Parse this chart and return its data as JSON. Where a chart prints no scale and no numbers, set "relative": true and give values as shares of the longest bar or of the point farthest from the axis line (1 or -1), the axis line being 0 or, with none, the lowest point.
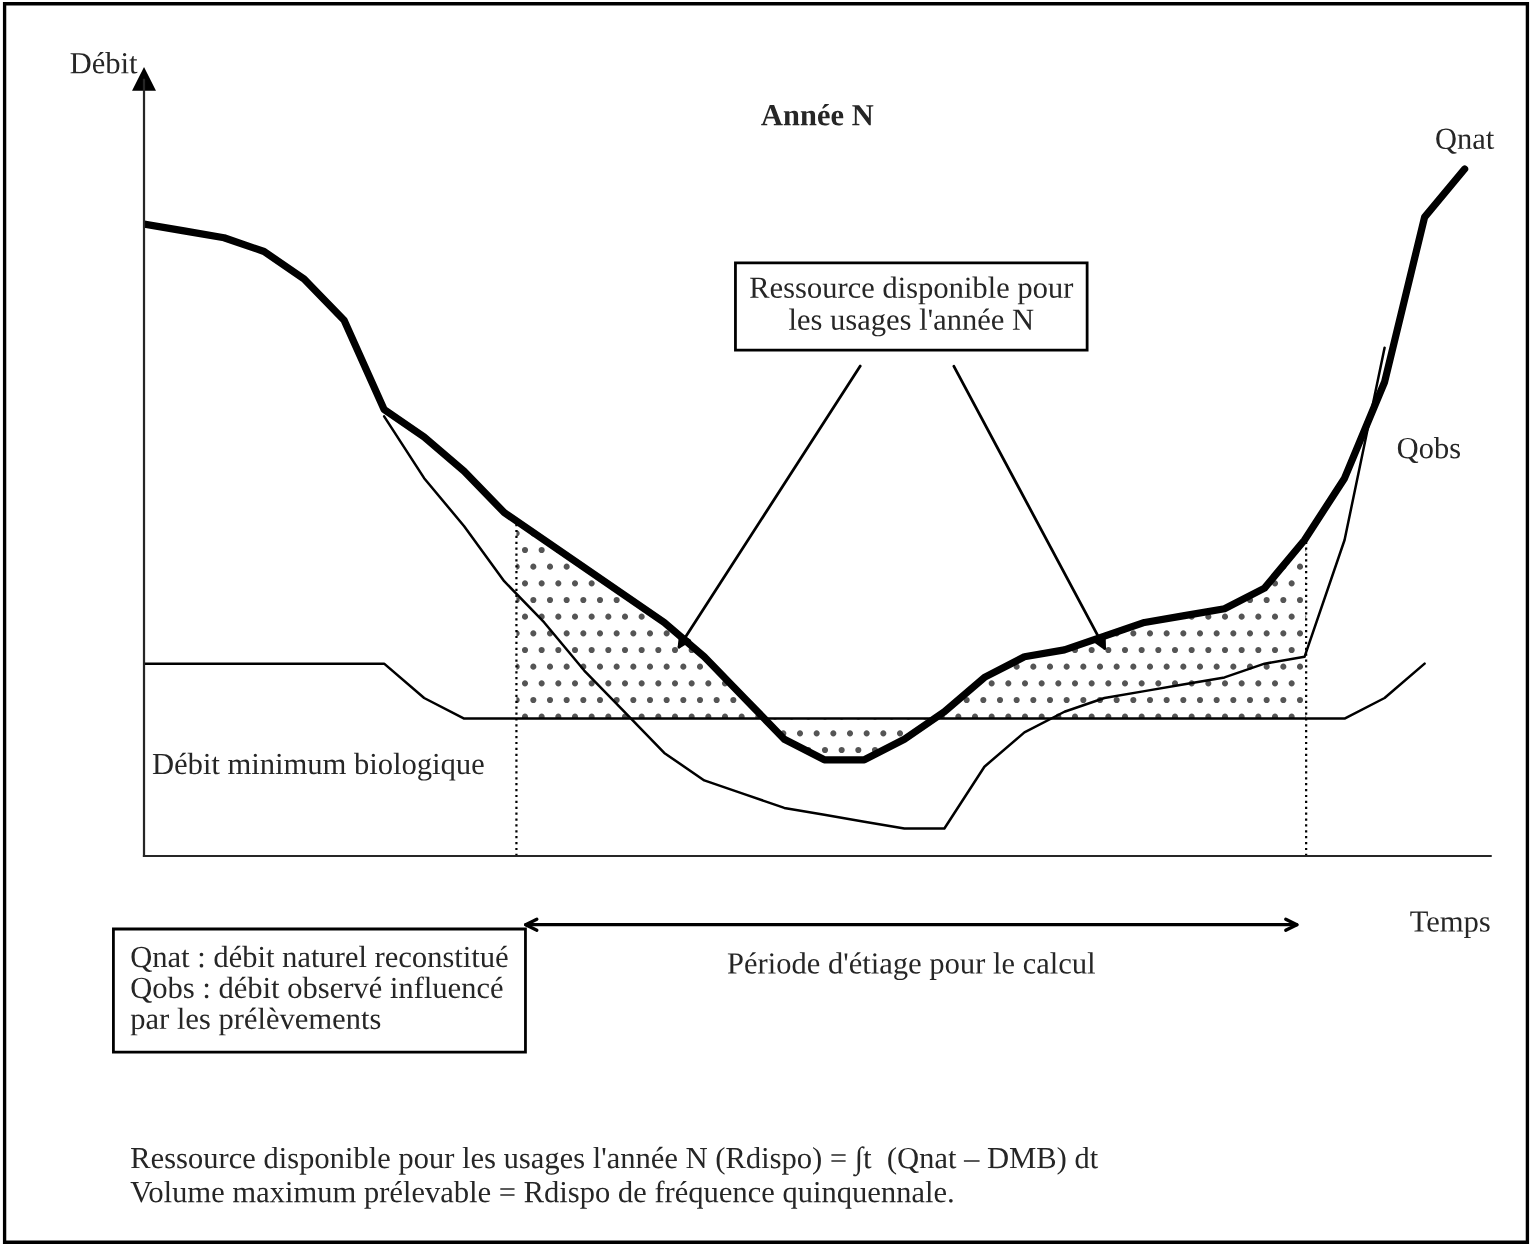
{
  "chart_data": {
    "type": "line",
    "title": "Année N",
    "xlabel": "Temps",
    "ylabel": "Débit",
    "relative": true,
    "legend": false,
    "marker": "none",
    "line_style": "solid",
    "categories": [
      null,
      null,
      null,
      null,
      null,
      null,
      null,
      null,
      null,
      null,
      null,
      null,
      null,
      null,
      null,
      null,
      null,
      null,
      null,
      null,
      null,
      null,
      null,
      null,
      null,
      null,
      null,
      null,
      null,
      null,
      null,
      null,
      null,
      null
    ],
    "series": [
      {
        "name": "Qnat",
        "color": "#000000",
        "values": [
          0.92,
          0.91,
          0.9,
          0.88,
          0.84,
          0.78,
          0.65,
          0.61,
          0.56,
          0.5,
          0.46,
          0.42,
          0.38,
          0.34,
          0.29,
          0.23,
          0.17,
          0.14,
          0.14,
          0.17,
          0.21,
          0.26,
          0.29,
          0.3,
          0.32,
          0.34,
          0.35,
          0.36,
          0.39,
          0.46,
          0.55,
          0.69,
          0.93,
          1.0
        ]
      },
      {
        "name": "Qobs",
        "color": "#000000",
        "values": [
          null,
          null,
          null,
          null,
          null,
          null,
          0.64,
          0.55,
          0.48,
          0.4,
          0.34,
          0.27,
          0.21,
          0.15,
          0.11,
          0.09,
          0.07,
          0.06,
          0.05,
          0.04,
          0.04,
          0.13,
          0.18,
          0.21,
          0.23,
          0.24,
          0.25,
          0.26,
          0.28,
          0.29,
          0.46,
          0.74,
          null,
          null
        ]
      },
      {
        "name": "Débit minimum biologique",
        "color": "#000000",
        "values": [
          0.28,
          0.28,
          0.28,
          0.28,
          0.28,
          0.28,
          0.28,
          0.23,
          0.2,
          0.2,
          0.2,
          0.2,
          0.2,
          0.2,
          0.2,
          0.2,
          0.2,
          0.2,
          0.2,
          0.2,
          0.2,
          0.2,
          0.2,
          0.2,
          0.2,
          0.2,
          0.2,
          0.2,
          0.2,
          0.2,
          0.2,
          0.23,
          0.28,
          null
        ]
      }
    ],
    "annotations": [
      "Ressource disponible pour\nles usages l'année N",
      "Période d'étiage pour le calcul",
      "Qnat : débit naturel reconstitué\nQobs : débit observé influencé\npar les prélèvements",
      "Ressource disponible pour les usages l'année N (Rdispo) = ∫t  (Qnat – DMB) dt\nVolume maximum prélevable = Rdispo de fréquence quinquennale."
    ]
  }
}
